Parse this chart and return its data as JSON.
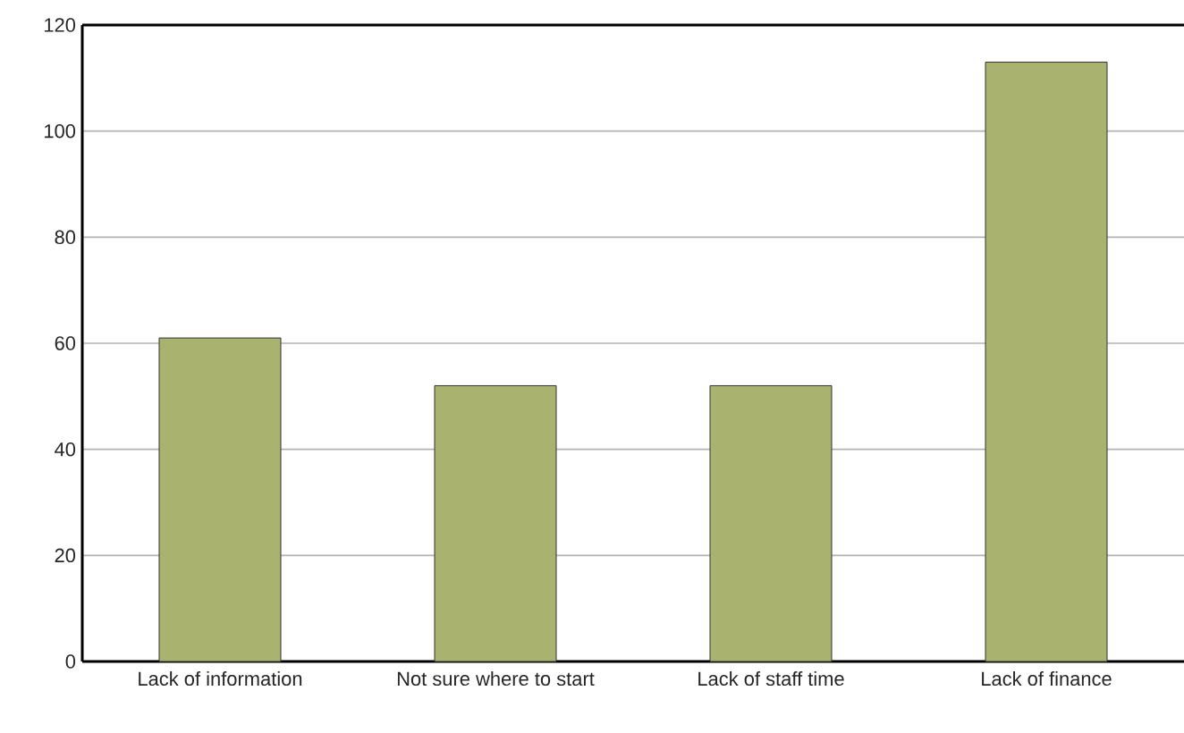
{
  "chart_data": {
    "type": "bar",
    "categories": [
      "Lack of information",
      "Not sure where to start",
      "Lack of staff time",
      "Lack of finance"
    ],
    "values": [
      61,
      52,
      52,
      113
    ],
    "color": "#a9b26f",
    "ylim": [
      0,
      120
    ],
    "yticks": [
      0,
      20,
      40,
      60,
      80,
      100,
      120
    ],
    "grid": "y"
  }
}
